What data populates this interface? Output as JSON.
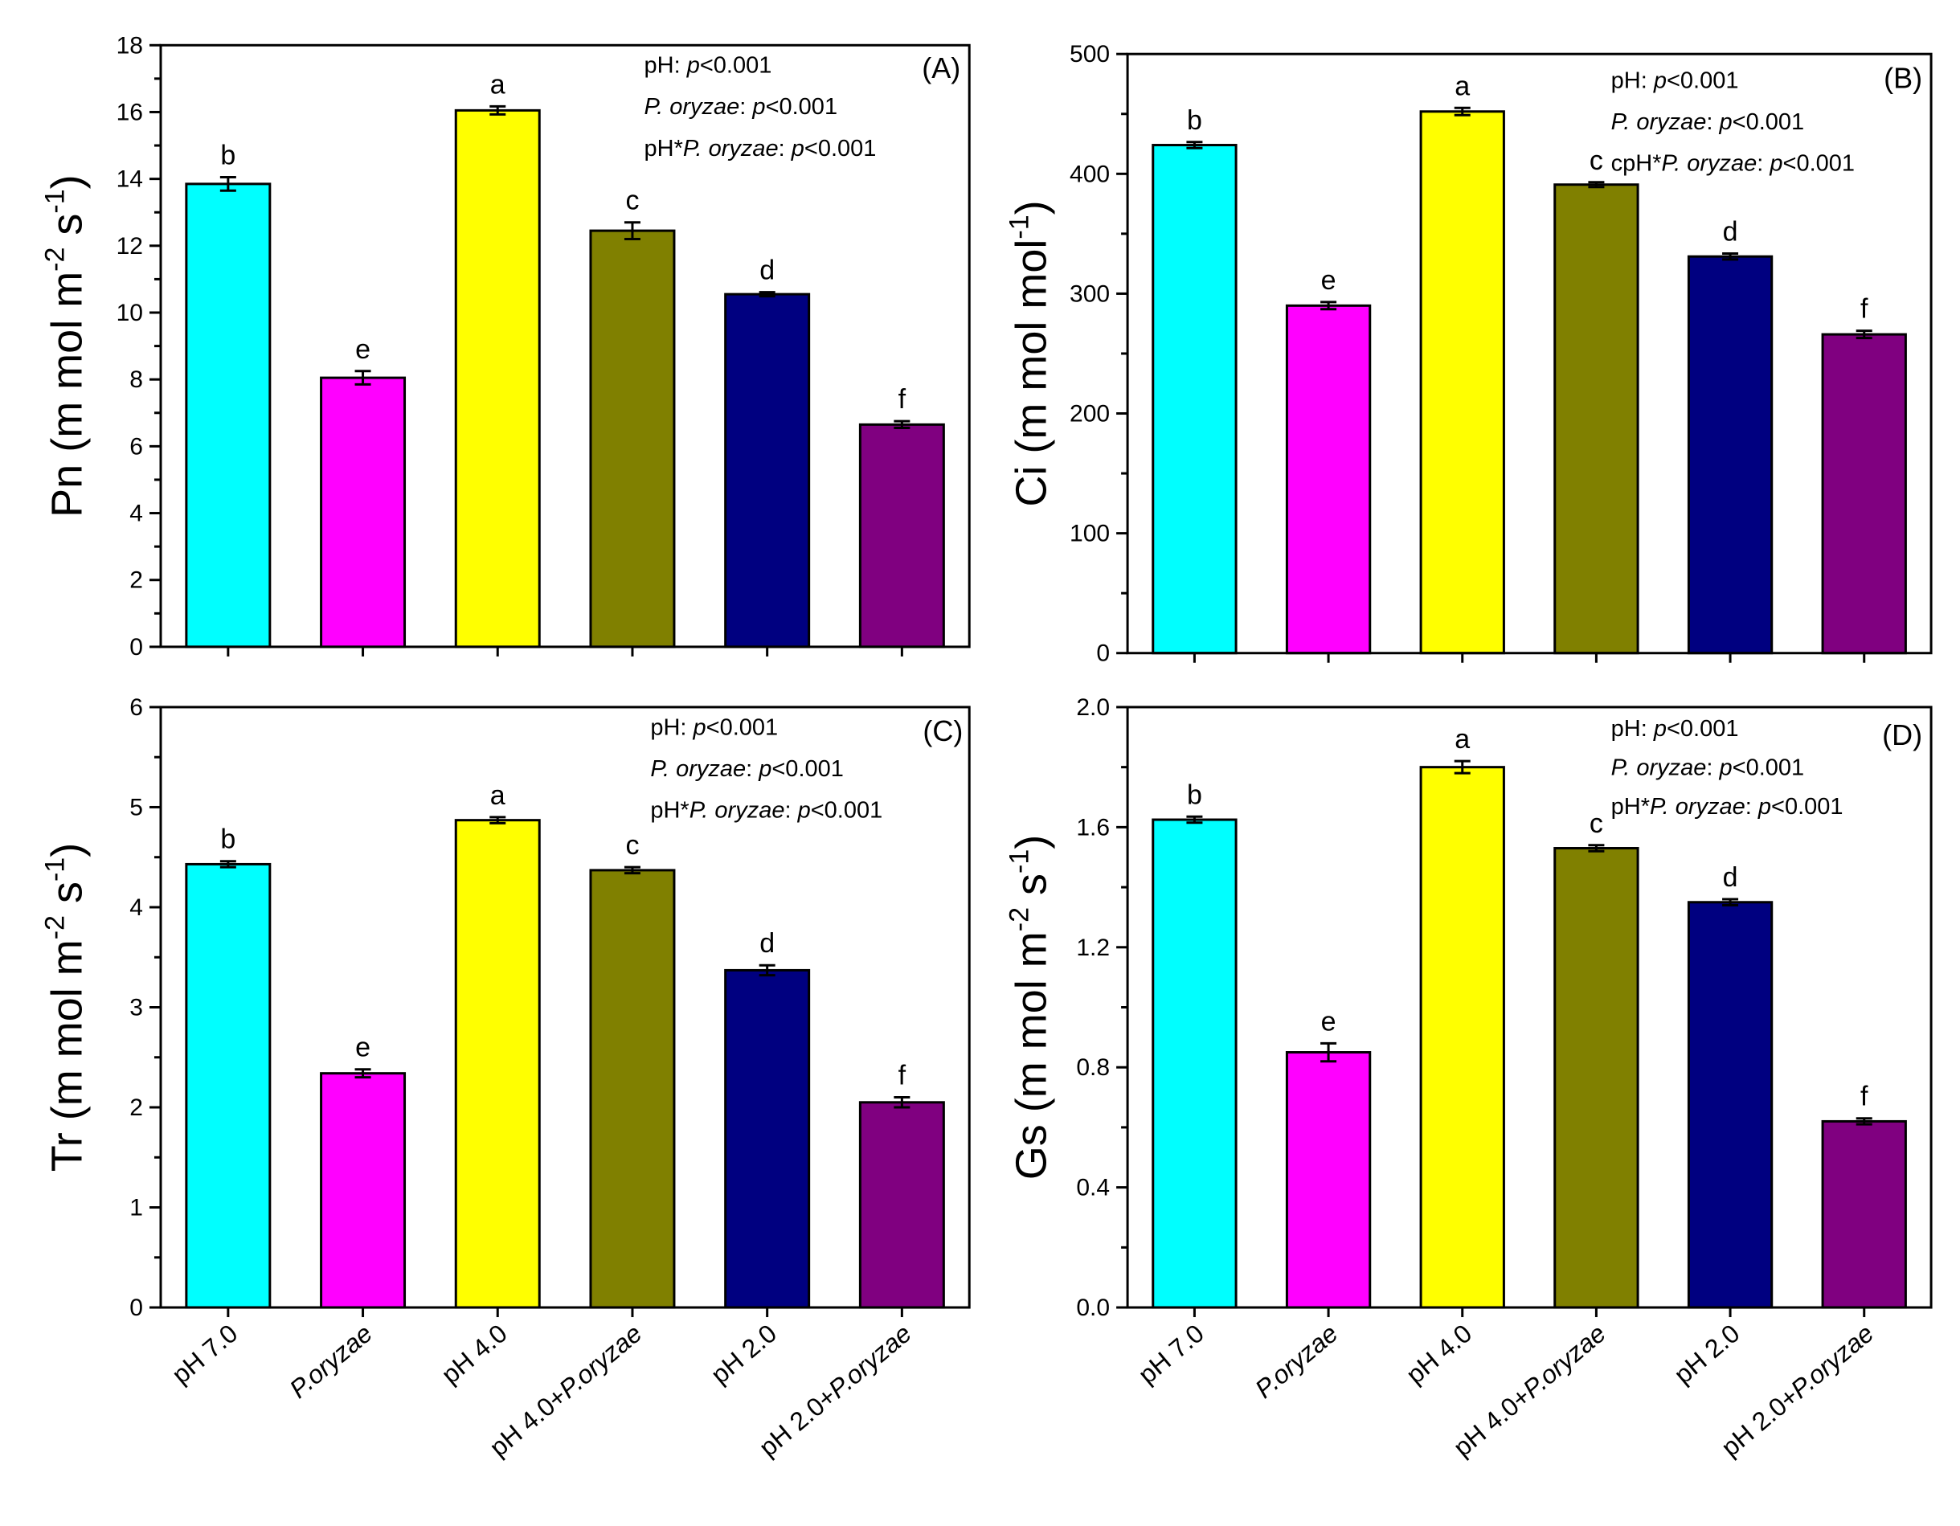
{
  "chart_data": [
    {
      "type": "bar",
      "panel": "(A)",
      "ylabel": {
        "base": "Pn (m mol m",
        "sup1": "-2",
        "mid": " s",
        "sup2": "-1",
        "end": ")"
      },
      "ylim": [
        0,
        18
      ],
      "yticks": [
        "0",
        "2",
        "4",
        "6",
        "8",
        "10",
        "12",
        "14",
        "16",
        "18"
      ],
      "ytick_values": [
        0,
        2,
        4,
        6,
        8,
        10,
        12,
        14,
        16,
        18
      ],
      "categories": [
        "pH 7.0",
        "P.oryzae",
        "pH 4.0",
        "pH 4.0+P.oryzae",
        "pH 2.0",
        "pH 2.0+P.oryzae"
      ],
      "values": [
        13.85,
        8.05,
        16.05,
        12.45,
        10.55,
        6.65
      ],
      "errors": [
        0.2,
        0.2,
        0.12,
        0.25,
        0.06,
        0.1
      ],
      "letters": [
        "b",
        "e",
        "a",
        "c",
        "d",
        "f"
      ],
      "stats": [
        {
          "plain": "pH: ",
          "italic": "p",
          "rest": "<0.001"
        },
        {
          "italic_pre": "P. oryzae",
          "plain": ": ",
          "italic": "p",
          "rest": "<0.001"
        },
        {
          "plain": "pH*",
          "italic_pre": "P. oryzae",
          "plain2": ": ",
          "italic": "p",
          "rest": "<0.001"
        }
      ]
    },
    {
      "type": "bar",
      "panel": "(B)",
      "ylabel": {
        "base": "Ci (m mol mol",
        "sup1": "-1",
        "mid": "",
        "sup2": "",
        "end": ")"
      },
      "ylim": [
        0,
        500
      ],
      "yticks": [
        "0",
        "100",
        "200",
        "300",
        "400",
        "500"
      ],
      "ytick_values": [
        0,
        100,
        200,
        300,
        400,
        500
      ],
      "categories": [
        "pH 7.0",
        "P.oryzae",
        "pH 4.0",
        "pH 4.0+P.oryzae",
        "pH 2.0",
        "pH 2.0+P.oryzae"
      ],
      "values": [
        424,
        290,
        452,
        391,
        331,
        266
      ],
      "errors": [
        2.5,
        3,
        3,
        2,
        2.5,
        3
      ],
      "letters": [
        "b",
        "e",
        "a",
        "c",
        "d",
        "f"
      ],
      "stats": [
        {
          "plain": "pH: ",
          "italic": "p",
          "rest": "<0.001"
        },
        {
          "italic_pre": "P. oryzae",
          "plain": ": ",
          "italic": "p",
          "rest": "<0.001"
        },
        {
          "plain": "cpH*",
          "italic_pre": "P. oryzae",
          "plain2": ": ",
          "italic": "p",
          "rest": "<0.001"
        }
      ]
    },
    {
      "type": "bar",
      "panel": "(C)",
      "ylabel": {
        "base": "Tr (m mol m",
        "sup1": "-2",
        "mid": " s",
        "sup2": "-1",
        "end": ")"
      },
      "ylim": [
        0,
        6
      ],
      "yticks": [
        "0",
        "1",
        "2",
        "3",
        "4",
        "5",
        "6"
      ],
      "ytick_values": [
        0,
        1,
        2,
        3,
        4,
        5,
        6
      ],
      "categories": [
        "pH 7.0",
        "P.oryzae",
        "pH 4.0",
        "pH 4.0+P.oryzae",
        "pH 2.0",
        "pH 2.0+P.oryzae"
      ],
      "values": [
        4.43,
        2.34,
        4.87,
        4.37,
        3.37,
        2.05
      ],
      "errors": [
        0.03,
        0.04,
        0.03,
        0.03,
        0.05,
        0.05
      ],
      "letters": [
        "b",
        "e",
        "a",
        "c",
        "d",
        "f"
      ],
      "stats": [
        {
          "plain": "pH: ",
          "italic": "p",
          "rest": "<0.001"
        },
        {
          "italic_pre": "P. oryzae",
          "plain": ": ",
          "italic": "p",
          "rest": "<0.001"
        },
        {
          "plain": "pH*",
          "italic_pre": "P. oryzae",
          "plain2": ": ",
          "italic": "p",
          "rest": "<0.001"
        }
      ]
    },
    {
      "type": "bar",
      "panel": "(D)",
      "ylabel": {
        "base": "Gs (m mol m",
        "sup1": "-2",
        "mid": " s",
        "sup2": "-1",
        "end": ")"
      },
      "ylim": [
        0,
        2.0
      ],
      "yticks": [
        "0.0",
        "0.4",
        "0.8",
        "1.2",
        "1.6",
        "2.0"
      ],
      "ytick_values": [
        0,
        0.4,
        0.8,
        1.2,
        1.6,
        2.0
      ],
      "categories": [
        "pH 7.0",
        "P.oryzae",
        "pH 4.0",
        "pH 4.0+P.oryzae",
        "pH 2.0",
        "pH 2.0+P.oryzae"
      ],
      "values": [
        1.625,
        0.85,
        1.8,
        1.53,
        1.35,
        0.62
      ],
      "errors": [
        0.01,
        0.03,
        0.02,
        0.01,
        0.01,
        0.01
      ],
      "letters": [
        "b",
        "e",
        "a",
        "c",
        "d",
        "f"
      ],
      "stats": [
        {
          "plain": "pH: ",
          "italic": "p",
          "rest": "<0.001"
        },
        {
          "italic_pre": "P. oryzae",
          "plain": ": ",
          "italic": "p",
          "rest": "<0.001"
        },
        {
          "plain": "pH*",
          "italic_pre": "P. oryzae",
          "plain2": ": ",
          "italic": "p",
          "rest": "<0.001"
        }
      ]
    }
  ],
  "bar_colors": [
    "#00ffff",
    "#ff00ff",
    "#ffff00",
    "#808000",
    "#000080",
    "#800080"
  ]
}
